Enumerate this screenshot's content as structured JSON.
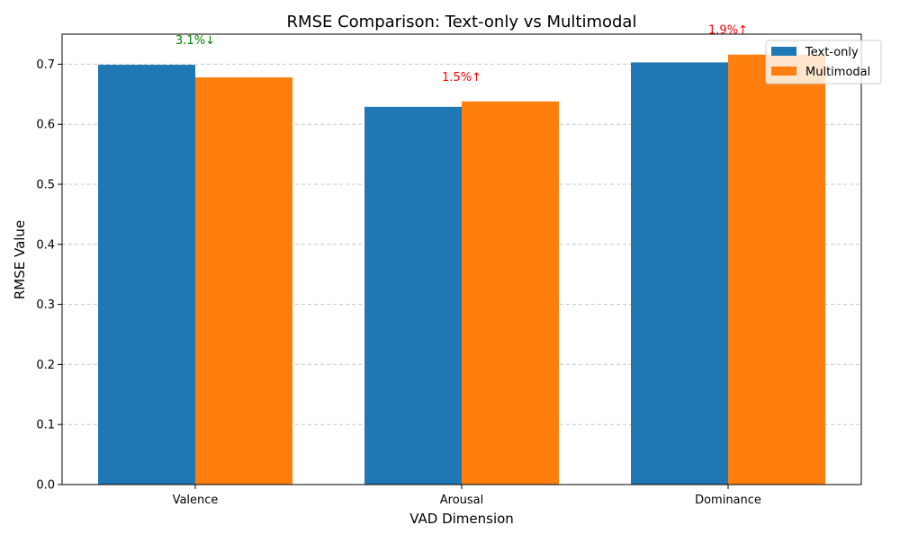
{
  "chart_data": {
    "type": "bar",
    "title": "RMSE Comparison: Text-only vs Multimodal",
    "xlabel": "VAD Dimension",
    "ylabel": "RMSE Value",
    "categories": [
      "Valence",
      "Arousal",
      "Dominance"
    ],
    "series": [
      {
        "name": "Text-only",
        "color": "#1f77b4",
        "values": [
          0.699,
          0.629,
          0.703
        ]
      },
      {
        "name": "Multimodal",
        "color": "#ff7f0e",
        "values": [
          0.678,
          0.638,
          0.716
        ]
      }
    ],
    "annotations": [
      {
        "category": "Valence",
        "text": "3.1%↓",
        "color": "#008000"
      },
      {
        "category": "Arousal",
        "text": "1.5%↑",
        "color": "#ff0000"
      },
      {
        "category": "Dominance",
        "text": "1.9%↑",
        "color": "#ff0000"
      }
    ],
    "ylim": [
      0,
      0.75
    ],
    "yticks": [
      "0.0",
      "0.1",
      "0.2",
      "0.3",
      "0.4",
      "0.5",
      "0.6",
      "0.7"
    ],
    "grid": "y-dashed",
    "legend_position": "top-right"
  }
}
